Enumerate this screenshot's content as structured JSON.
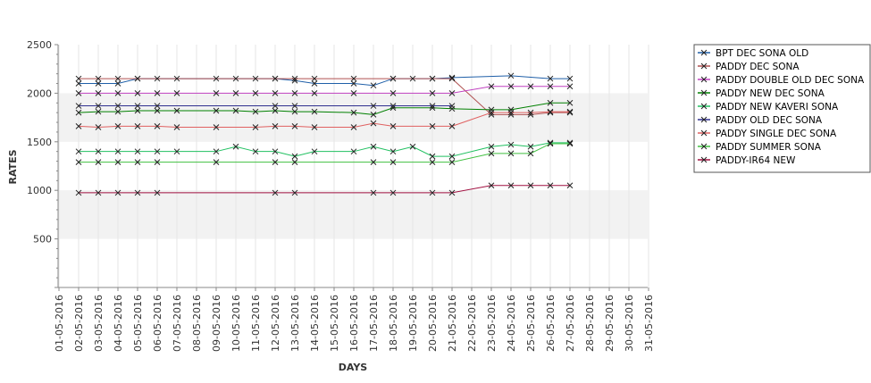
{
  "chart_data": {
    "type": "line",
    "xlabel": "DAYS",
    "ylabel": "RATES",
    "ylim": [
      0,
      2500
    ],
    "yticks": [
      "500",
      "1000",
      "1500",
      "2000",
      "2500"
    ],
    "x": [
      "01-05-2016",
      "02-05-2016",
      "03-05-2016",
      "04-05-2016",
      "05-05-2016",
      "06-05-2016",
      "07-05-2016",
      "08-05-2016",
      "09-05-2016",
      "10-05-2016",
      "11-05-2016",
      "12-05-2016",
      "13-05-2016",
      "14-05-2016",
      "15-05-2016",
      "16-05-2016",
      "17-05-2016",
      "18-05-2016",
      "19-05-2016",
      "20-05-2016",
      "21-05-2016",
      "22-05-2016",
      "23-05-2016",
      "24-05-2016",
      "25-05-2016",
      "26-05-2016",
      "27-05-2016",
      "28-05-2016",
      "29-05-2016",
      "30-05-2016",
      "31-05-2016"
    ],
    "grid": "horizontal-bands",
    "legend_position": "right",
    "series": [
      {
        "name": "BPT DEC SONA OLD",
        "color": "#1f5fa8",
        "values": [
          null,
          2100,
          2100,
          2100,
          2150,
          null,
          null,
          null,
          null,
          null,
          null,
          2150,
          2130,
          2100,
          null,
          2100,
          2080,
          2150,
          null,
          2150,
          2160,
          null,
          null,
          2180,
          null,
          2150,
          2150,
          null,
          null,
          null,
          null
        ]
      },
      {
        "name": "PADDY DEC SONA",
        "color": "#b05050",
        "values": [
          null,
          2150,
          2150,
          2150,
          2150,
          2150,
          2150,
          null,
          2150,
          2150,
          2150,
          2150,
          2150,
          2150,
          null,
          2150,
          null,
          2150,
          2150,
          2150,
          2150,
          null,
          1780,
          1780,
          1780,
          1800,
          1800,
          null,
          null,
          null,
          null
        ]
      },
      {
        "name": "PADDY DOUBLE OLD DEC SONA",
        "color": "#c040c0",
        "values": [
          null,
          2000,
          2000,
          2000,
          2000,
          2000,
          2000,
          null,
          2000,
          2000,
          2000,
          2000,
          2000,
          2000,
          null,
          2000,
          null,
          2000,
          null,
          2000,
          2000,
          null,
          2070,
          2070,
          2070,
          2070,
          2070,
          null,
          null,
          null,
          null
        ]
      },
      {
        "name": "PADDY NEW DEC SONA",
        "color": "#008000",
        "values": [
          null,
          1800,
          1810,
          1810,
          1820,
          1820,
          1820,
          null,
          1820,
          1820,
          1810,
          1820,
          1810,
          1810,
          null,
          1800,
          1780,
          1850,
          null,
          1850,
          1840,
          null,
          1830,
          1830,
          null,
          1900,
          1900,
          null,
          null,
          null,
          null
        ]
      },
      {
        "name": "PADDY NEW KAVERI SONA",
        "color": "#20c060",
        "values": [
          null,
          1400,
          1400,
          1400,
          1400,
          1400,
          1400,
          null,
          1400,
          1450,
          1400,
          1400,
          1350,
          1400,
          null,
          1400,
          1450,
          1400,
          1450,
          1350,
          1350,
          null,
          1450,
          1470,
          1450,
          1490,
          1490,
          null,
          null,
          null,
          null
        ]
      },
      {
        "name": "PADDY OLD DEC SONA",
        "color": "#303090",
        "values": [
          null,
          1870,
          1870,
          1870,
          1870,
          1870,
          null,
          null,
          null,
          null,
          null,
          1870,
          1870,
          null,
          null,
          null,
          1870,
          1870,
          null,
          1870,
          1870,
          null,
          null,
          null,
          null,
          null,
          null,
          null,
          null,
          null,
          null
        ]
      },
      {
        "name": "PADDY SINGLE DEC SONA",
        "color": "#e06060",
        "values": [
          null,
          1660,
          1650,
          1660,
          1660,
          1660,
          1650,
          null,
          1650,
          null,
          1650,
          1660,
          1660,
          1650,
          null,
          1650,
          1690,
          1660,
          null,
          1660,
          1660,
          null,
          1800,
          1800,
          1800,
          1810,
          1810,
          null,
          null,
          null,
          null
        ]
      },
      {
        "name": "PADDY SUMMER SONA",
        "color": "#40c040",
        "values": [
          null,
          1290,
          1290,
          1290,
          1290,
          1290,
          null,
          null,
          1290,
          null,
          null,
          1290,
          1290,
          null,
          null,
          null,
          1290,
          1290,
          null,
          1290,
          1290,
          null,
          1380,
          1380,
          1380,
          1480,
          1480,
          null,
          null,
          null,
          null
        ]
      },
      {
        "name": "PADDY-IR64 NEW",
        "color": "#a01040",
        "values": [
          null,
          975,
          975,
          975,
          975,
          975,
          null,
          null,
          null,
          null,
          null,
          975,
          975,
          null,
          null,
          null,
          975,
          975,
          null,
          975,
          975,
          null,
          1050,
          1050,
          1050,
          1050,
          1050,
          null,
          null,
          null,
          null
        ]
      }
    ]
  }
}
